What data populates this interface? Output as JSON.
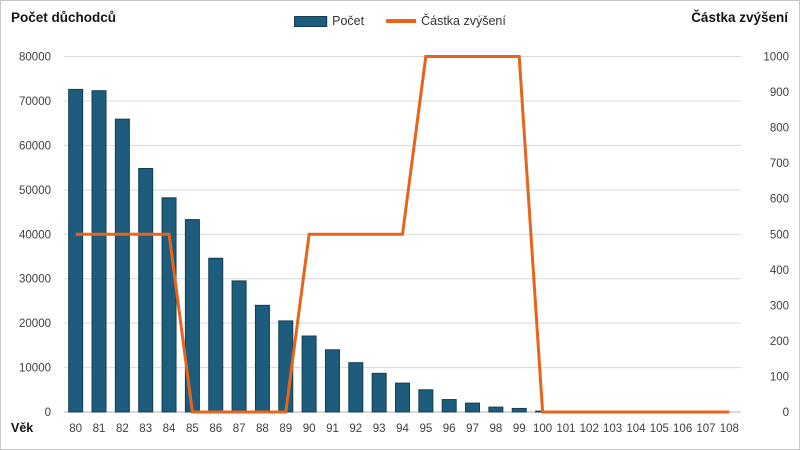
{
  "titles": {
    "left": "Počet důchodců",
    "right": "Částka zvýšení"
  },
  "legend": {
    "items": [
      {
        "label": "Počet",
        "swatch": "bar-swatch",
        "color": "#1d5c7c"
      },
      {
        "label": "Částka zvýšení",
        "swatch": "line-swatch",
        "color": "#e8641c"
      }
    ]
  },
  "chart_data": {
    "type": "combo",
    "categories": [
      80,
      81,
      82,
      83,
      84,
      85,
      86,
      87,
      88,
      89,
      90,
      91,
      92,
      93,
      94,
      95,
      96,
      97,
      98,
      99,
      100,
      101,
      102,
      103,
      104,
      105,
      106,
      107,
      108
    ],
    "series": [
      {
        "name": "Počet",
        "type": "bar",
        "axis": "left",
        "color": "#1d5c7c",
        "border_color": "#123f55",
        "values": [
          72600,
          72300,
          65900,
          54800,
          48200,
          43300,
          34600,
          29500,
          24000,
          20500,
          17100,
          14000,
          11100,
          8700,
          6500,
          5000,
          2800,
          2000,
          1100,
          800,
          200,
          0,
          0,
          0,
          0,
          0,
          0,
          0,
          0
        ]
      },
      {
        "name": "Částka zvýšení",
        "type": "line",
        "axis": "right",
        "color": "#e8641c",
        "values": [
          500,
          500,
          500,
          500,
          500,
          0,
          0,
          0,
          0,
          0,
          500,
          500,
          500,
          500,
          500,
          1000,
          1000,
          1000,
          1000,
          1000,
          0,
          0,
          0,
          0,
          0,
          0,
          0,
          0,
          0
        ]
      }
    ],
    "xlabel": "Věk",
    "left_axis": {
      "title": "Počet důchodců",
      "min": 0,
      "max": 80000,
      "step": 10000
    },
    "right_axis": {
      "title": "Částka zvýšení",
      "min": 0,
      "max": 1000,
      "step": 100
    },
    "grid": "horizontal",
    "legend_position": "top-center",
    "colors": {
      "grid": "#d9d9d9",
      "axis_line": "#b3b3b3",
      "tick_text": "#3f3f3f",
      "label_text": "#141414"
    }
  }
}
